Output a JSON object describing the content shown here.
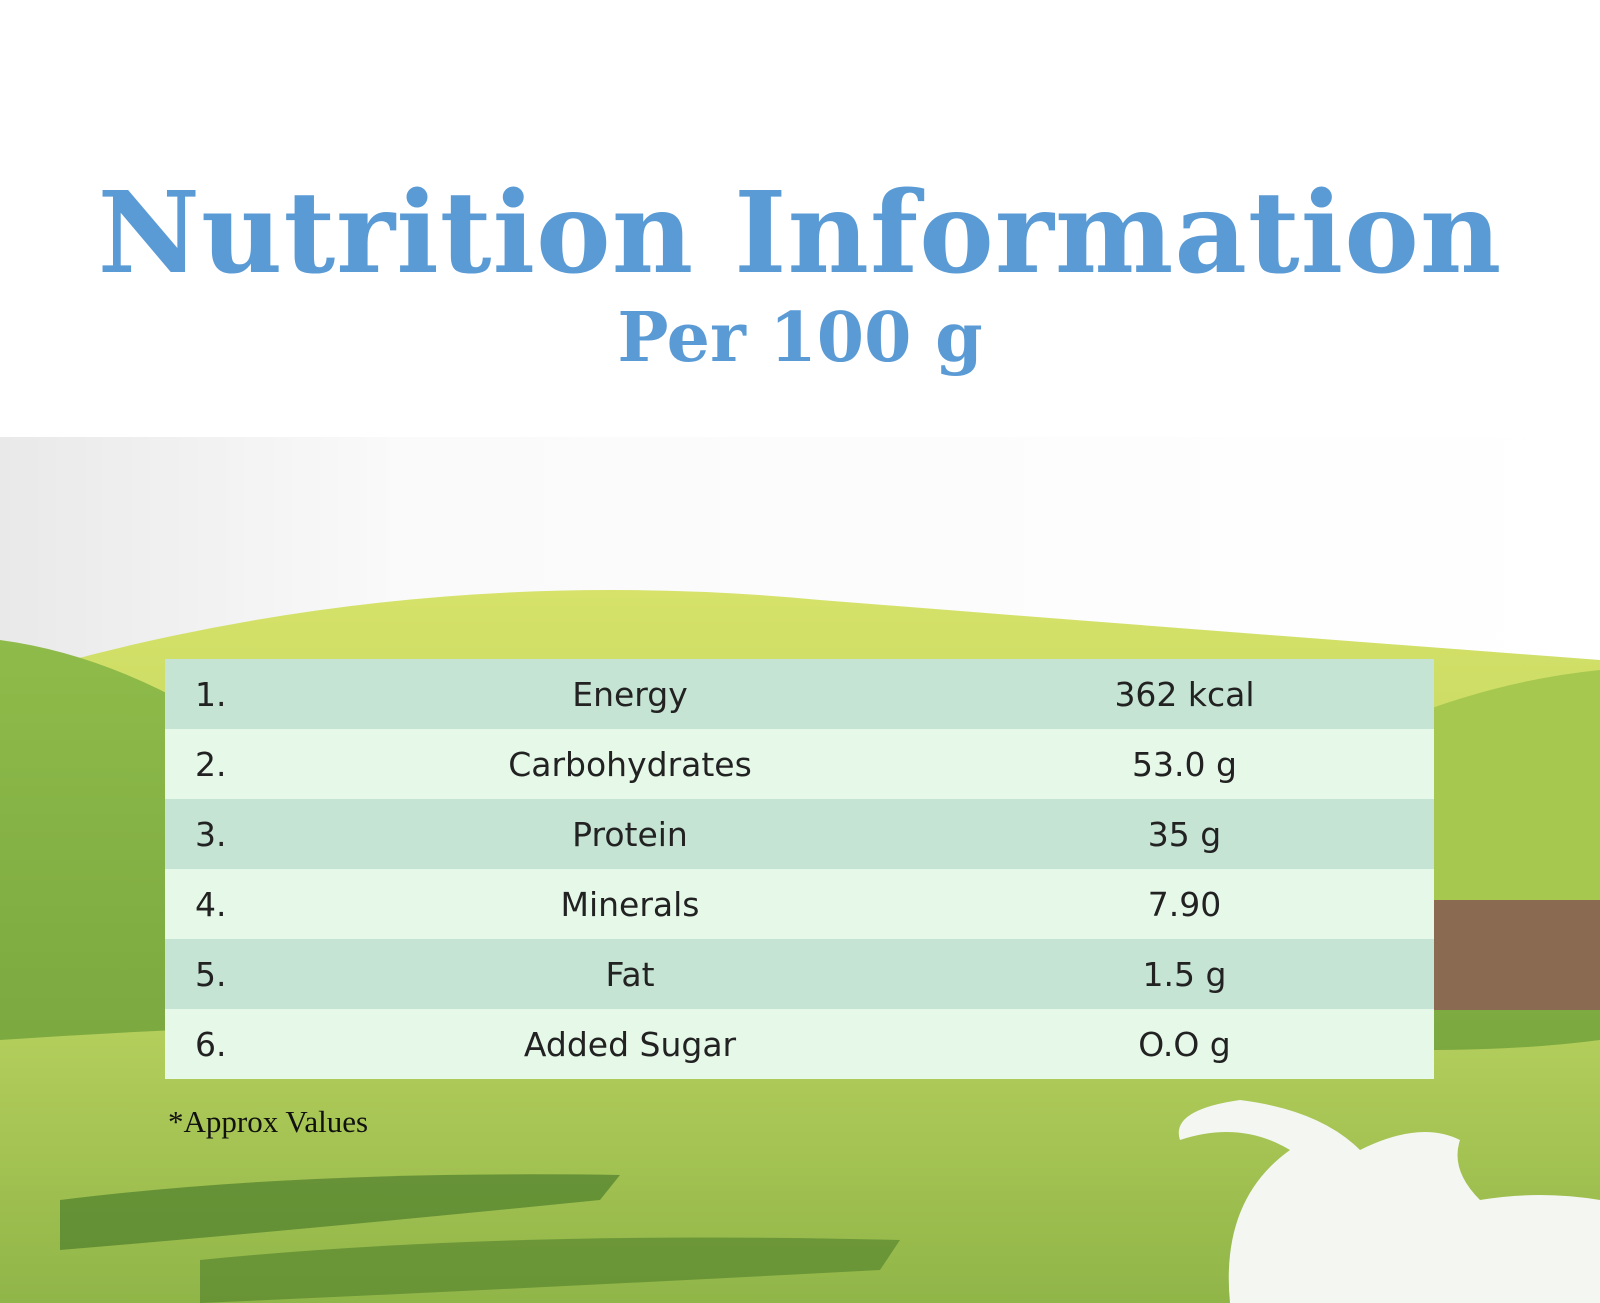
{
  "header": {
    "title": "Nutrition Information",
    "subtitle": "Per 100 g"
  },
  "table": {
    "rows": [
      [
        "1.",
        "Energy",
        "362 kcal"
      ],
      [
        "2.",
        "Carbohydrates",
        "53.0 g"
      ],
      [
        "3.",
        "Protein",
        "35 g"
      ],
      [
        "4.",
        "Minerals",
        "7.90"
      ],
      [
        "5.",
        "Fat",
        "1.5 g"
      ],
      [
        "6.",
        "Added Sugar",
        "O.O g"
      ]
    ]
  },
  "footnote": "*Approx Values"
}
